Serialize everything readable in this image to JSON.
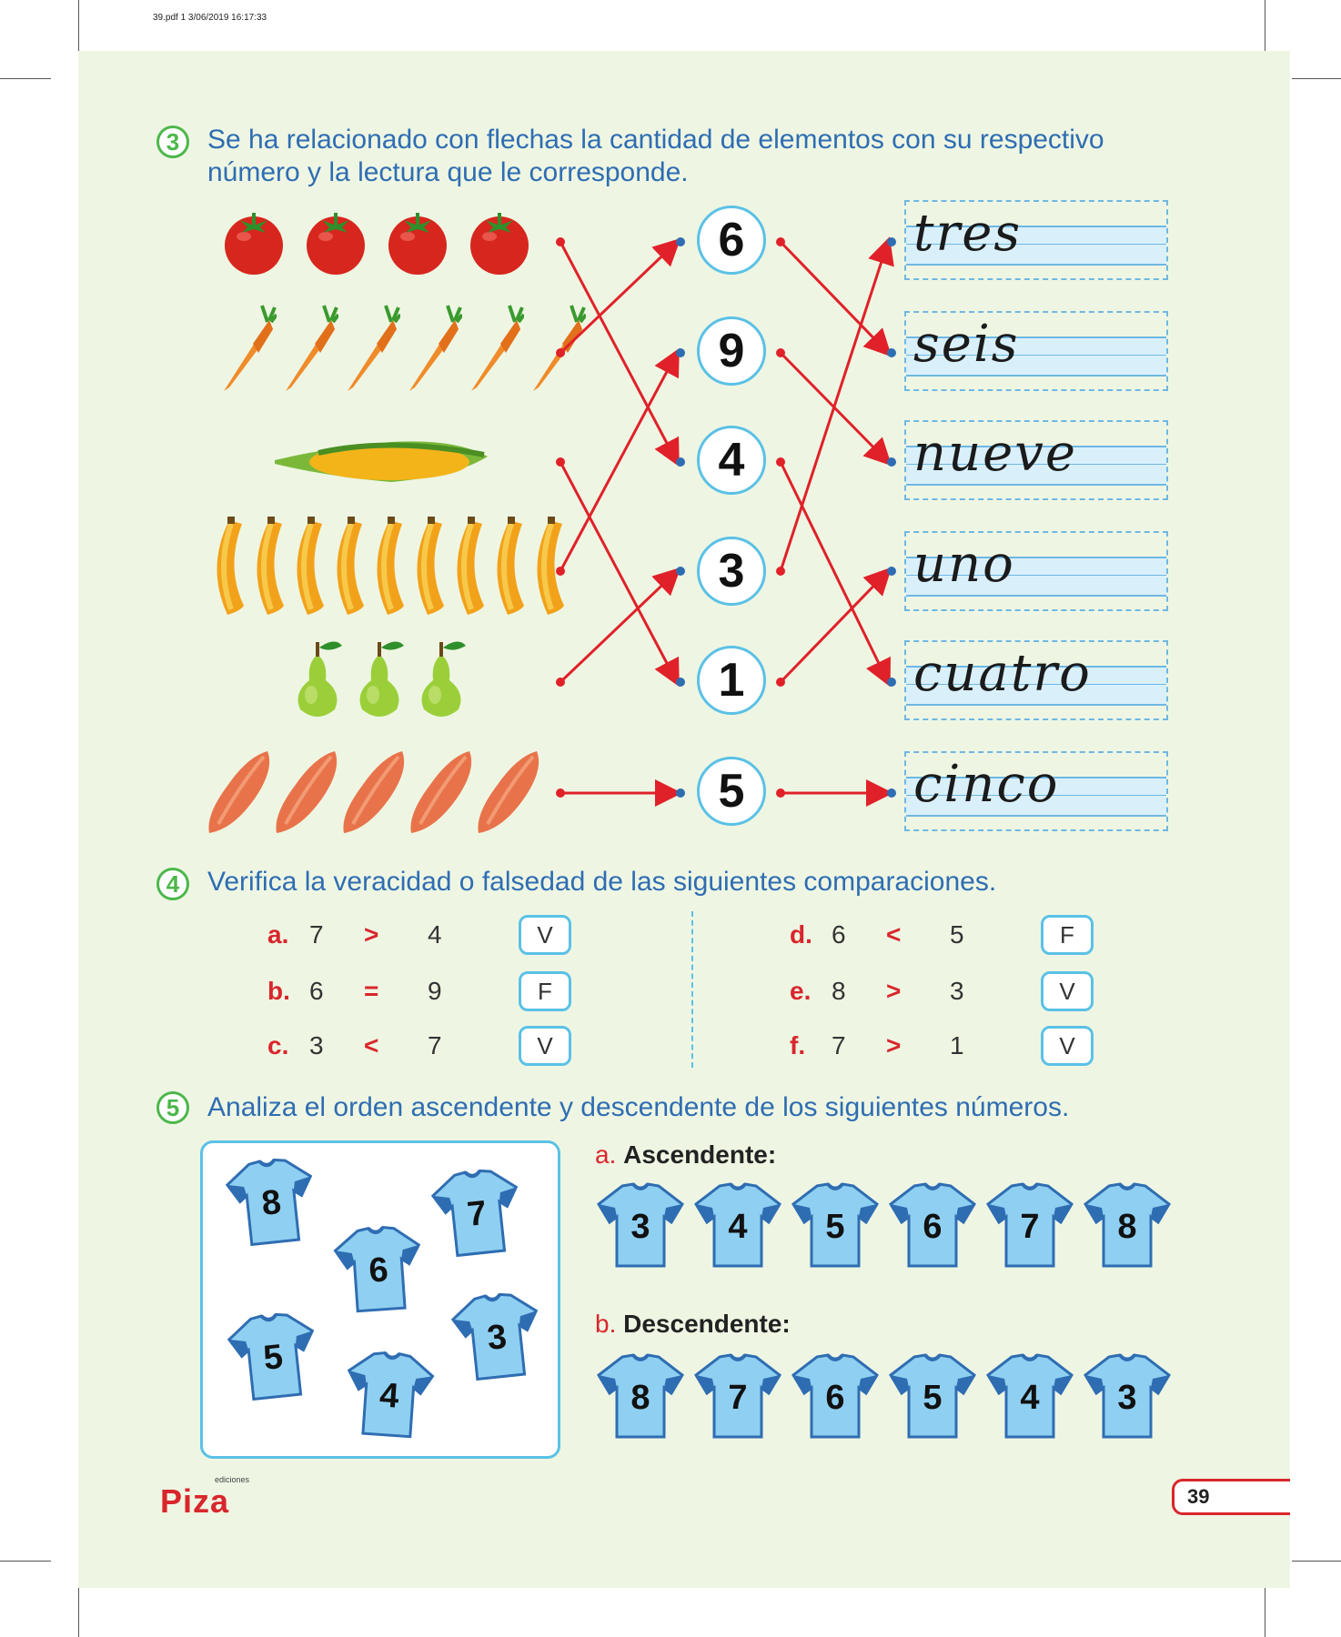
{
  "meta": {
    "header": "39.pdf   1   3/06/2019   16:17:33"
  },
  "exercise3": {
    "number": "3",
    "instruction_line1": "Se ha relacionado con flechas la cantidad de elementos con su respectivo",
    "instruction_line2": "número y la lectura que le corresponde.",
    "food_groups": [
      {
        "item": "tomato-icon",
        "count": 4
      },
      {
        "item": "carrot-icon",
        "count": 6
      },
      {
        "item": "corn-icon",
        "count": 1
      },
      {
        "item": "banana-icon",
        "count": 9
      },
      {
        "item": "pear-icon",
        "count": 3
      },
      {
        "item": "sweet-potato-icon",
        "count": 5
      }
    ],
    "numbers": [
      "6",
      "9",
      "4",
      "3",
      "1",
      "5"
    ],
    "words": [
      "tres",
      "seis",
      "nueve",
      "uno",
      "cuatro",
      "cinco"
    ],
    "arrow_color": "#e02129"
  },
  "exercise4": {
    "number": "4",
    "instruction": "Verifica la veracidad o falsedad de las siguientes comparaciones.",
    "left": [
      {
        "letter": "a.",
        "a": "7",
        "op": ">",
        "b": "4",
        "answer": "V"
      },
      {
        "letter": "b.",
        "a": "6",
        "op": "=",
        "b": "9",
        "answer": "F"
      },
      {
        "letter": "c.",
        "a": "3",
        "op": "<",
        "b": "7",
        "answer": "V"
      }
    ],
    "right": [
      {
        "letter": "d.",
        "a": "6",
        "op": "<",
        "b": "5",
        "answer": "F"
      },
      {
        "letter": "e.",
        "a": "8",
        "op": ">",
        "b": "3",
        "answer": "V"
      },
      {
        "letter": "f.",
        "a": "7",
        "op": ">",
        "b": "1",
        "answer": "V"
      }
    ]
  },
  "exercise5": {
    "number": "5",
    "instruction": "Analiza el orden ascendente y descendente de los siguientes números.",
    "scattered": [
      "8",
      "7",
      "6",
      "3",
      "5",
      "4"
    ],
    "asc_letter": "a.",
    "asc_label": "Ascendente:",
    "ascending": [
      "3",
      "4",
      "5",
      "6",
      "7",
      "8"
    ],
    "desc_letter": "b.",
    "desc_label": "Descendente:",
    "descending": [
      "8",
      "7",
      "6",
      "5",
      "4",
      "3"
    ],
    "jersey_color": "#8fd0f2",
    "jersey_trim": "#2f6db2"
  },
  "footer": {
    "brand": "Piza",
    "brand_small": "ediciones",
    "page": "39"
  }
}
